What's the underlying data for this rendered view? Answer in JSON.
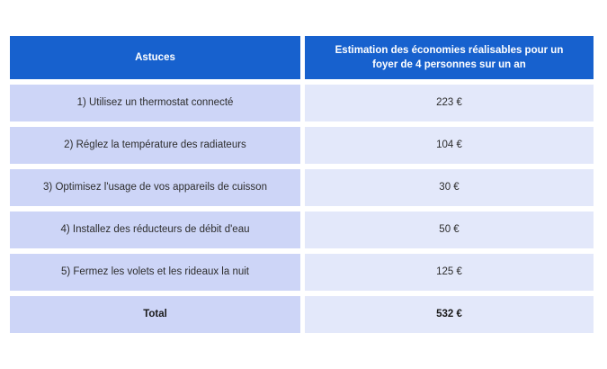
{
  "colors": {
    "header_bg": "#1761ce",
    "header_text": "#ffffff",
    "tip_cell_bg": "#cdd5f7",
    "value_cell_bg": "#e3e8fa",
    "body_text": "#2d2d2d",
    "page_bg": "#ffffff"
  },
  "table": {
    "header": {
      "col1": "Astuces",
      "col2": "Estimation des économies réalisables pour un foyer de 4 personnes sur un an"
    },
    "rows": [
      {
        "tip": "1) Utilisez un thermostat connecté",
        "value": "223 €"
      },
      {
        "tip": "2) Réglez la température des radiateurs",
        "value": "104 €"
      },
      {
        "tip": "3) Optimisez l'usage de vos appareils de cuisson",
        "value": "30 €"
      },
      {
        "tip": "4) Installez des réducteurs de débit d'eau",
        "value": "50 €"
      },
      {
        "tip": "5) Fermez les volets et les rideaux la nuit",
        "value": "125 €"
      }
    ],
    "total": {
      "label": "Total",
      "value": "532 €"
    }
  },
  "chart_data": {
    "type": "table",
    "title": "Astuces — Estimation des économies réalisables pour un foyer de 4 personnes sur un an",
    "columns": [
      "Astuces",
      "Estimation des économies réalisables pour un foyer de 4 personnes sur un an"
    ],
    "rows": [
      [
        "1) Utilisez un thermostat connecté",
        "223 €"
      ],
      [
        "2) Réglez la température des radiateurs",
        "104 €"
      ],
      [
        "3) Optimisez l'usage de vos appareils de cuisson",
        "30 €"
      ],
      [
        "4) Installez des réducteurs de débit d'eau",
        "50 €"
      ],
      [
        "5) Fermez les volets et les rideaux la nuit",
        "125 €"
      ],
      [
        "Total",
        "532 €"
      ]
    ],
    "values_eur": [
      223,
      104,
      30,
      50,
      125
    ],
    "total_eur": 532,
    "currency": "EUR"
  }
}
